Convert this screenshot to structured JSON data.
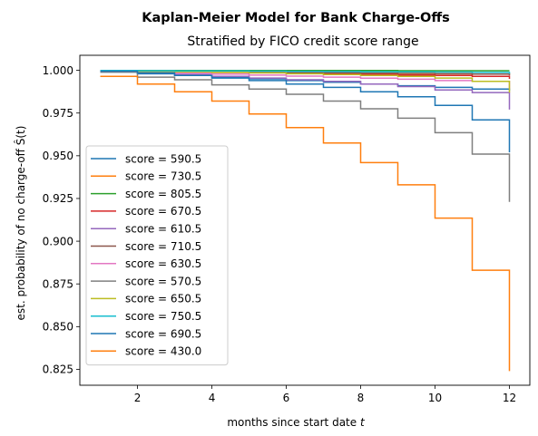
{
  "chart_data": {
    "type": "line",
    "step": true,
    "suptitle": "Kaplan-Meier Model for Bank Charge-Offs",
    "title": "Stratified by FICO credit score range",
    "xlabel": "months since start date t",
    "ylabel": "est. probability of no charge-off Ŝ(t)",
    "xlim": [
      0.45,
      12.55
    ],
    "ylim": [
      0.8157,
      1.0088
    ],
    "xticks": [
      2,
      4,
      6,
      8,
      10,
      12
    ],
    "yticks": [
      0.825,
      0.85,
      0.875,
      0.9,
      0.925,
      0.95,
      0.975,
      1.0
    ],
    "ytick_labels": [
      "0.825",
      "0.850",
      "0.875",
      "0.900",
      "0.925",
      "0.950",
      "0.975",
      "1.000"
    ],
    "grid": false,
    "legend_position": "lower-left",
    "x": [
      1,
      2,
      3,
      4,
      5,
      6,
      7,
      8,
      9,
      10,
      11,
      12
    ],
    "series": [
      {
        "name": "score = 590.5",
        "color": "#1f77b4",
        "values": [
          0.999,
          0.998,
          0.997,
          0.996,
          0.995,
          0.994,
          0.993,
          0.992,
          0.991,
          0.99,
          0.989,
          0.988
        ],
        "final_drop": 0.988
      },
      {
        "name": "score = 730.5",
        "color": "#ff7f0e",
        "values": [
          0.9998,
          0.9996,
          0.9994,
          0.9992,
          0.999,
          0.9988,
          0.9986,
          0.9984,
          0.9982,
          0.998,
          0.9978,
          0.9976
        ],
        "final_drop": 0.9976
      },
      {
        "name": "score = 805.5",
        "color": "#2ca02c",
        "values": [
          0.9999,
          0.9999,
          0.9999,
          0.9999,
          0.9999,
          0.9999,
          0.9999,
          0.9999,
          0.9998,
          0.9998,
          0.9998,
          0.9998
        ],
        "final_drop": 0.9998
      },
      {
        "name": "score = 670.5",
        "color": "#d62728",
        "values": [
          0.9997,
          0.9994,
          0.9991,
          0.9988,
          0.9985,
          0.9982,
          0.9979,
          0.9976,
          0.9973,
          0.997,
          0.9965,
          0.996
        ],
        "final_drop": 0.995
      },
      {
        "name": "score = 610.5",
        "color": "#9467bd",
        "values": [
          0.9995,
          0.9985,
          0.9975,
          0.9965,
          0.9955,
          0.9945,
          0.9935,
          0.992,
          0.9905,
          0.9885,
          0.987,
          0.985
        ],
        "final_drop": 0.977
      },
      {
        "name": "score = 710.5",
        "color": "#8c564b",
        "values": [
          0.9998,
          0.9996,
          0.9994,
          0.9992,
          0.999,
          0.9988,
          0.9986,
          0.9984,
          0.9982,
          0.998,
          0.9978,
          0.9976
        ],
        "final_drop": 0.997
      },
      {
        "name": "score = 630.5",
        "color": "#e377c2",
        "values": [
          0.9996,
          0.999,
          0.9984,
          0.9978,
          0.9972,
          0.9966,
          0.996,
          0.9954,
          0.9948,
          0.994,
          0.9935,
          0.993
        ],
        "final_drop": 0.989
      },
      {
        "name": "score = 570.5",
        "color": "#7f7f7f",
        "values": [
          0.999,
          0.996,
          0.9945,
          0.9915,
          0.989,
          0.986,
          0.982,
          0.9775,
          0.972,
          0.9635,
          0.951,
          0.951
        ],
        "final_drop": 0.923
      },
      {
        "name": "score = 650.5",
        "color": "#bcbd22",
        "values": [
          0.9997,
          0.9994,
          0.9991,
          0.9988,
          0.9985,
          0.998,
          0.9975,
          0.997,
          0.9965,
          0.9955,
          0.9935,
          0.991
        ],
        "final_drop": 0.987
      },
      {
        "name": "score = 750.5",
        "color": "#17becf",
        "values": [
          0.9999,
          0.9998,
          0.9997,
          0.9996,
          0.9995,
          0.9994,
          0.9993,
          0.9992,
          0.9991,
          0.999,
          0.9988,
          0.9986
        ],
        "final_drop": 0.998
      },
      {
        "name": "score = 690.5",
        "color": "#1f77b4",
        "values": [
          0.9995,
          0.9985,
          0.997,
          0.9955,
          0.994,
          0.992,
          0.99,
          0.9875,
          0.9845,
          0.9795,
          0.971,
          0.971
        ],
        "final_drop": 0.952
      },
      {
        "name": "score = 430.0",
        "color": "#ff7f0e",
        "values": [
          0.9965,
          0.992,
          0.9875,
          0.982,
          0.9745,
          0.9665,
          0.9575,
          0.946,
          0.933,
          0.9135,
          0.883,
          0.883
        ],
        "final_drop": 0.824
      }
    ]
  }
}
